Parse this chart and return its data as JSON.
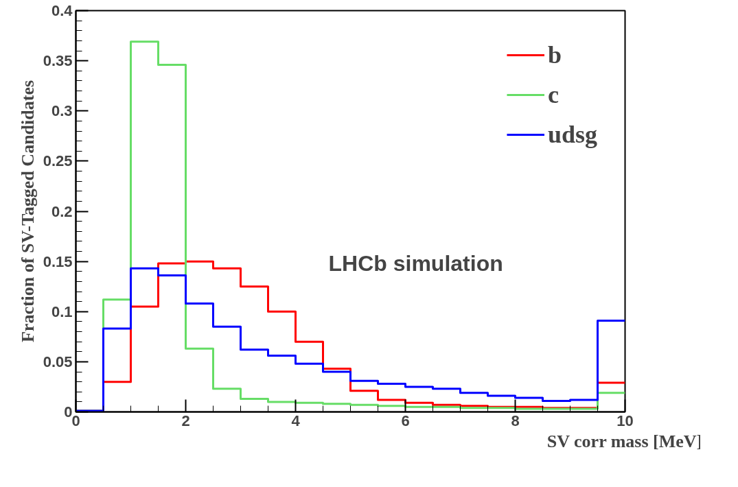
{
  "chart_data": {
    "type": "histogram",
    "xlabel": "SV corr mass [MeV]",
    "ylabel": "Fraction of SV-Tagged Candidates",
    "bins": [
      0,
      0.5,
      1,
      1.5,
      2,
      2.5,
      3,
      3.5,
      4,
      4.5,
      5,
      5.5,
      6,
      6.5,
      7,
      7.5,
      8,
      8.5,
      9,
      9.5,
      10
    ],
    "series": [
      {
        "name": "b",
        "color": "#ff0000",
        "values": [
          0.001,
          0.03,
          0.105,
          0.148,
          0.15,
          0.143,
          0.125,
          0.1,
          0.07,
          0.043,
          0.021,
          0.012,
          0.009,
          0.007,
          0.006,
          0.005,
          0.005,
          0.004,
          0.004,
          0.029
        ]
      },
      {
        "name": "c",
        "color": "#66dd66",
        "values": [
          0.001,
          0.112,
          0.369,
          0.346,
          0.063,
          0.023,
          0.013,
          0.01,
          0.009,
          0.008,
          0.007,
          0.006,
          0.005,
          0.005,
          0.004,
          0.004,
          0.003,
          0.003,
          0.003,
          0.019
        ]
      },
      {
        "name": "udsg",
        "color": "#0000ff",
        "values": [
          0.001,
          0.083,
          0.143,
          0.136,
          0.108,
          0.085,
          0.062,
          0.056,
          0.048,
          0.04,
          0.031,
          0.028,
          0.025,
          0.023,
          0.019,
          0.016,
          0.014,
          0.011,
          0.012,
          0.091
        ]
      }
    ],
    "xlim": [
      0,
      10
    ],
    "ylim": [
      0,
      0.4
    ],
    "xticks": [
      0,
      2,
      4,
      6,
      8,
      10
    ],
    "yticks": [
      0,
      0.05,
      0.1,
      0.15,
      0.2,
      0.25,
      0.3,
      0.35,
      0.4
    ],
    "legend": "top right",
    "grid": false,
    "annotations": [
      "LHCb simulation"
    ]
  }
}
